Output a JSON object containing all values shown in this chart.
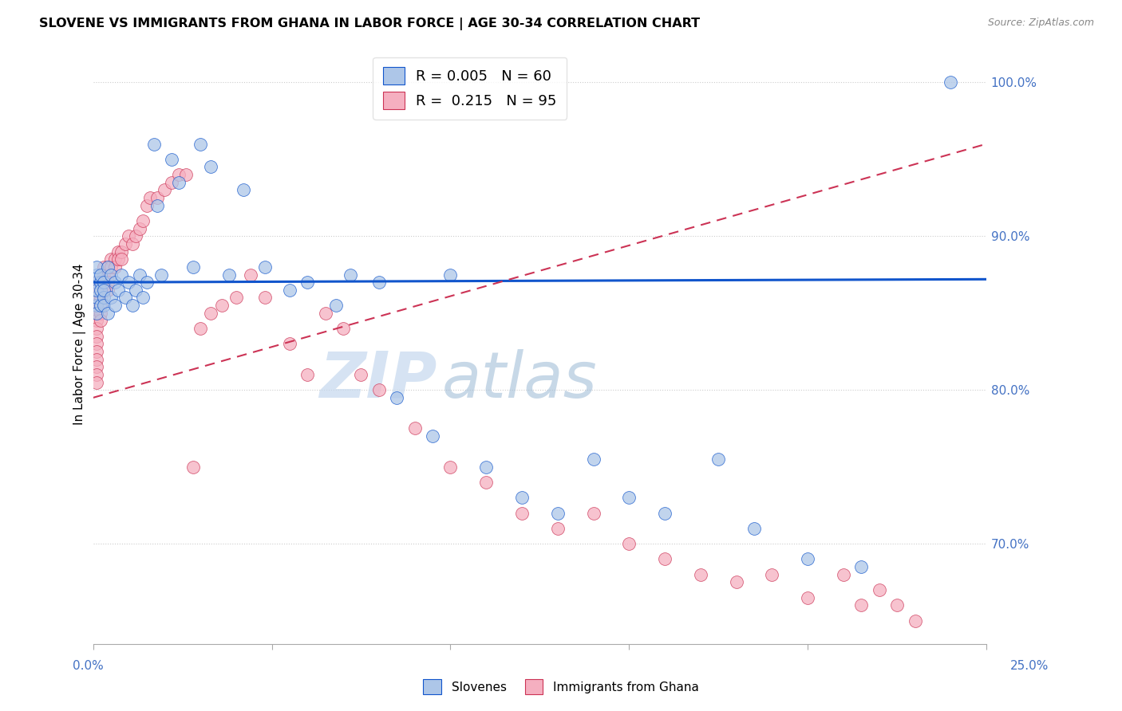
{
  "title": "SLOVENE VS IMMIGRANTS FROM GHANA IN LABOR FORCE | AGE 30-34 CORRELATION CHART",
  "source": "Source: ZipAtlas.com",
  "ylabel": "In Labor Force | Age 30-34",
  "ylabel_right_ticks": [
    "70.0%",
    "80.0%",
    "90.0%",
    "100.0%"
  ],
  "ylabel_right_vals": [
    0.7,
    0.8,
    0.9,
    1.0
  ],
  "legend_blue_r": "0.005",
  "legend_blue_n": "60",
  "legend_pink_r": "0.215",
  "legend_pink_n": "95",
  "legend_label_blue": "Slovenes",
  "legend_label_pink": "Immigrants from Ghana",
  "watermark_zip": "ZIP",
  "watermark_atlas": "atlas",
  "xlim": [
    0.0,
    0.25
  ],
  "ylim": [
    0.635,
    1.025
  ],
  "blue_color": "#adc6e8",
  "pink_color": "#f5afc0",
  "trend_blue_color": "#1155cc",
  "trend_pink_color": "#cc3355",
  "blue_scatter_x": [
    0.001,
    0.001,
    0.001,
    0.001,
    0.001,
    0.001,
    0.001,
    0.002,
    0.002,
    0.002,
    0.002,
    0.003,
    0.003,
    0.003,
    0.003,
    0.004,
    0.004,
    0.005,
    0.005,
    0.006,
    0.006,
    0.007,
    0.008,
    0.009,
    0.01,
    0.011,
    0.012,
    0.013,
    0.014,
    0.015,
    0.017,
    0.018,
    0.019,
    0.022,
    0.024,
    0.028,
    0.03,
    0.033,
    0.038,
    0.042,
    0.048,
    0.055,
    0.06,
    0.068,
    0.072,
    0.08,
    0.085,
    0.095,
    0.1,
    0.11,
    0.12,
    0.13,
    0.14,
    0.15,
    0.16,
    0.175,
    0.185,
    0.2,
    0.215,
    0.24
  ],
  "blue_scatter_y": [
    0.87,
    0.875,
    0.88,
    0.855,
    0.86,
    0.865,
    0.85,
    0.87,
    0.855,
    0.865,
    0.875,
    0.86,
    0.87,
    0.855,
    0.865,
    0.88,
    0.85,
    0.875,
    0.86,
    0.87,
    0.855,
    0.865,
    0.875,
    0.86,
    0.87,
    0.855,
    0.865,
    0.875,
    0.86,
    0.87,
    0.96,
    0.92,
    0.875,
    0.95,
    0.935,
    0.88,
    0.96,
    0.945,
    0.875,
    0.93,
    0.88,
    0.865,
    0.87,
    0.855,
    0.875,
    0.87,
    0.795,
    0.77,
    0.875,
    0.75,
    0.73,
    0.72,
    0.755,
    0.73,
    0.72,
    0.755,
    0.71,
    0.69,
    0.685,
    1.0
  ],
  "pink_scatter_x": [
    0.001,
    0.001,
    0.001,
    0.001,
    0.001,
    0.001,
    0.001,
    0.001,
    0.001,
    0.001,
    0.001,
    0.001,
    0.001,
    0.001,
    0.001,
    0.001,
    0.001,
    0.001,
    0.001,
    0.001,
    0.001,
    0.001,
    0.001,
    0.001,
    0.001,
    0.001,
    0.001,
    0.001,
    0.001,
    0.001,
    0.002,
    0.002,
    0.002,
    0.002,
    0.002,
    0.002,
    0.003,
    0.003,
    0.003,
    0.003,
    0.004,
    0.004,
    0.004,
    0.004,
    0.005,
    0.005,
    0.006,
    0.006,
    0.007,
    0.007,
    0.008,
    0.008,
    0.009,
    0.01,
    0.011,
    0.012,
    0.013,
    0.014,
    0.015,
    0.016,
    0.018,
    0.02,
    0.022,
    0.024,
    0.026,
    0.028,
    0.03,
    0.033,
    0.036,
    0.04,
    0.044,
    0.048,
    0.055,
    0.06,
    0.065,
    0.07,
    0.075,
    0.08,
    0.09,
    0.1,
    0.11,
    0.12,
    0.13,
    0.14,
    0.15,
    0.16,
    0.17,
    0.18,
    0.19,
    0.2,
    0.21,
    0.215,
    0.22,
    0.225,
    0.23
  ],
  "pink_scatter_y": [
    0.87,
    0.87,
    0.87,
    0.87,
    0.87,
    0.87,
    0.87,
    0.87,
    0.865,
    0.865,
    0.865,
    0.865,
    0.865,
    0.86,
    0.86,
    0.86,
    0.855,
    0.855,
    0.855,
    0.85,
    0.85,
    0.845,
    0.84,
    0.835,
    0.83,
    0.825,
    0.82,
    0.815,
    0.81,
    0.805,
    0.87,
    0.865,
    0.86,
    0.855,
    0.85,
    0.845,
    0.88,
    0.875,
    0.87,
    0.865,
    0.88,
    0.875,
    0.87,
    0.865,
    0.885,
    0.88,
    0.885,
    0.88,
    0.89,
    0.885,
    0.89,
    0.885,
    0.895,
    0.9,
    0.895,
    0.9,
    0.905,
    0.91,
    0.92,
    0.925,
    0.925,
    0.93,
    0.935,
    0.94,
    0.94,
    0.75,
    0.84,
    0.85,
    0.855,
    0.86,
    0.875,
    0.86,
    0.83,
    0.81,
    0.85,
    0.84,
    0.81,
    0.8,
    0.775,
    0.75,
    0.74,
    0.72,
    0.71,
    0.72,
    0.7,
    0.69,
    0.68,
    0.675,
    0.68,
    0.665,
    0.68,
    0.66,
    0.67,
    0.66,
    0.65
  ],
  "blue_trend_x0": 0.0,
  "blue_trend_x1": 0.25,
  "blue_trend_y0": 0.87,
  "blue_trend_y1": 0.872,
  "pink_trend_x0": 0.0,
  "pink_trend_x1": 0.25,
  "pink_trend_y0": 0.795,
  "pink_trend_y1": 0.96
}
